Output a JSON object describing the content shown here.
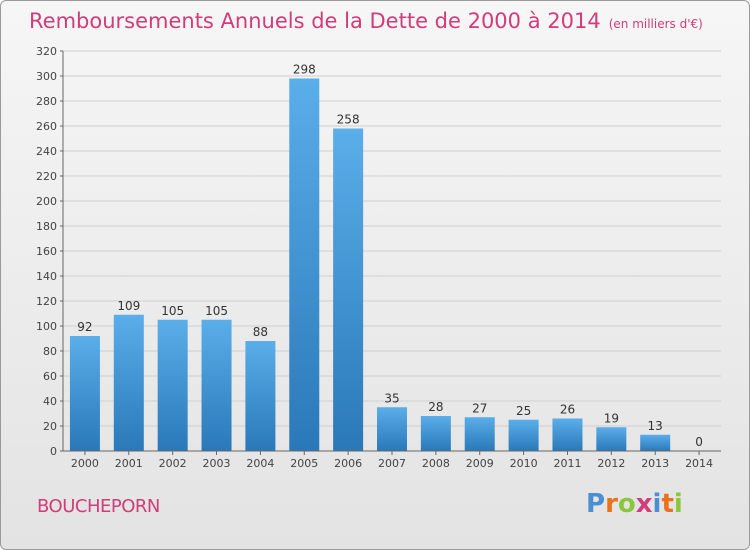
{
  "title": "Remboursements Annuels de la Dette de 2000 à 2014",
  "subtitle": "(en milliers d'€)",
  "commune": "BOUCHEPORN",
  "logo": {
    "letters": [
      "P",
      "r",
      "o",
      "x",
      "i",
      "t",
      "i"
    ],
    "colors": [
      "#4a8fd1",
      "#e8731c",
      "#8cc63f",
      "#d13c7a",
      "#4a8fd1",
      "#e8731c",
      "#8cc63f"
    ]
  },
  "colors": {
    "bar_top": "#5aaeea",
    "bar_bottom": "#2a78b8",
    "accent": "#d13c7a",
    "grid": "#cfcfcf"
  },
  "chart_data": {
    "type": "bar",
    "title": "Remboursements Annuels de la Dette de 2000 à 2014",
    "subtitle": "(en milliers d'€)",
    "categories": [
      "2000",
      "2001",
      "2002",
      "2003",
      "2004",
      "2005",
      "2006",
      "2007",
      "2008",
      "2009",
      "2010",
      "2011",
      "2012",
      "2013",
      "2014"
    ],
    "values": [
      92,
      109,
      105,
      105,
      88,
      298,
      258,
      35,
      28,
      27,
      25,
      26,
      19,
      13,
      0
    ],
    "ylim": [
      0,
      320
    ],
    "yticks": [
      0,
      20,
      40,
      60,
      80,
      100,
      120,
      140,
      160,
      180,
      200,
      220,
      240,
      260,
      280,
      300,
      320
    ],
    "grid": true,
    "xlabel": "",
    "ylabel": ""
  }
}
